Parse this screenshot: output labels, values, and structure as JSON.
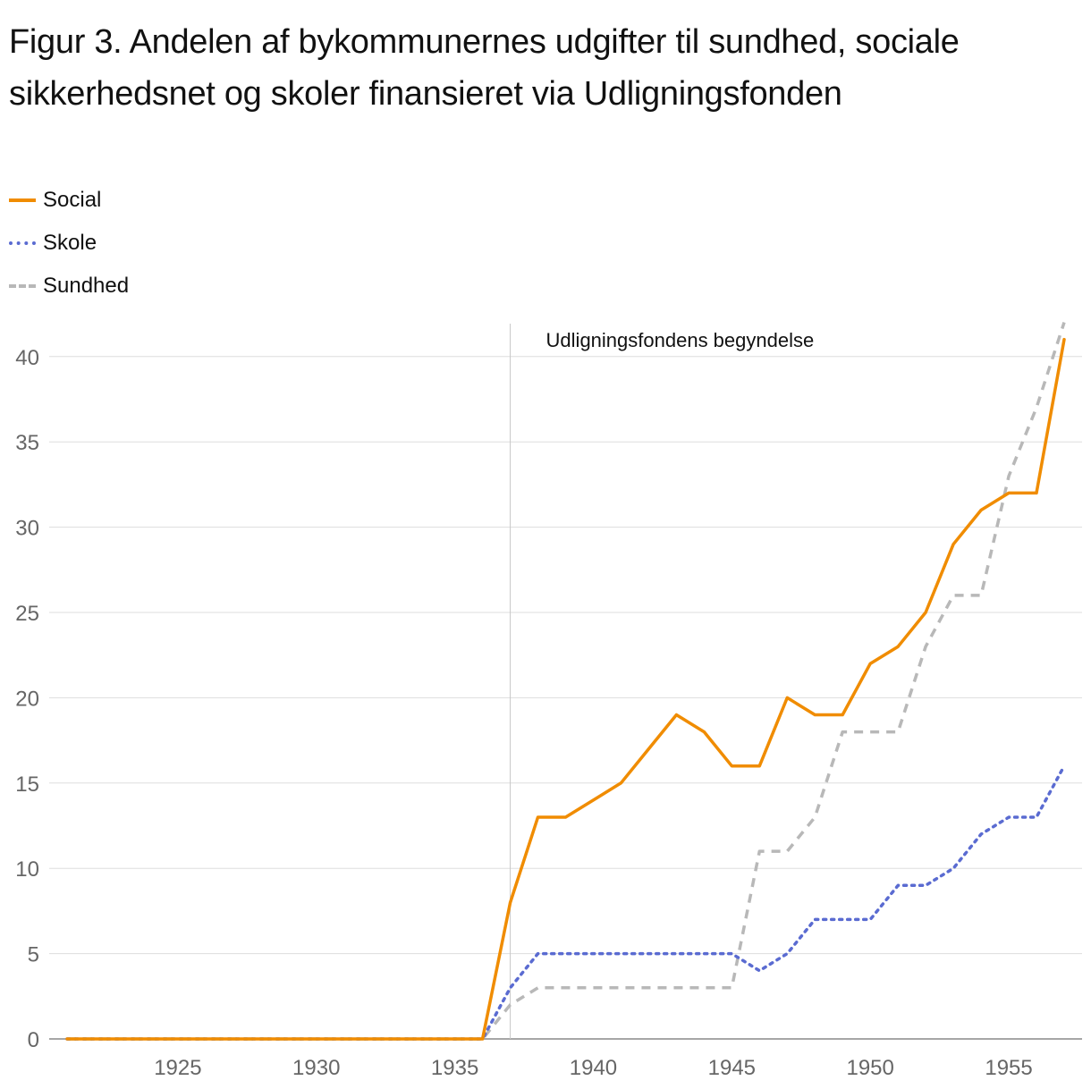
{
  "title": "Figur 3. Andelen af bykommunernes udgifter til sundhed, sociale sikkerhedsnet og skoler finansieret via Udligningsfonden",
  "colors": {
    "social": "#f08c00",
    "skole": "#5a6bd1",
    "sundhed": "#b8b8b8",
    "grid": "#dddddd",
    "axis": "#666666",
    "annotation_line": "#c8c8c8"
  },
  "chart_data": {
    "type": "line",
    "title": "Figur 3. Andelen af bykommunernes udgifter til sundhed, sociale sikkerhedsnet og skoler finansieret via Udligningsfonden",
    "xlabel": "",
    "ylabel": "",
    "xlim": [
      1921,
      1957
    ],
    "ylim": [
      0,
      42
    ],
    "x_ticks": [
      1925,
      1930,
      1935,
      1940,
      1945,
      1950,
      1955
    ],
    "y_ticks": [
      0,
      5,
      10,
      15,
      20,
      25,
      30,
      35,
      40
    ],
    "grid": "horizontal",
    "legend_position": "top-left",
    "annotation": {
      "x": 1937,
      "text": "Udligningsfondens begyndelse"
    },
    "x": [
      1921,
      1922,
      1923,
      1924,
      1925,
      1926,
      1927,
      1928,
      1929,
      1930,
      1931,
      1932,
      1933,
      1934,
      1935,
      1936,
      1937,
      1938,
      1939,
      1940,
      1941,
      1942,
      1943,
      1944,
      1945,
      1946,
      1947,
      1948,
      1949,
      1950,
      1951,
      1952,
      1953,
      1954,
      1955,
      1956,
      1957
    ],
    "series": [
      {
        "name": "Social",
        "style": "solid",
        "values": [
          0,
          0,
          0,
          0,
          0,
          0,
          0,
          0,
          0,
          0,
          0,
          0,
          0,
          0,
          0,
          0,
          8,
          13,
          13,
          14,
          15,
          17,
          19,
          18,
          16,
          16,
          20,
          19,
          19,
          22,
          23,
          25,
          29,
          31,
          32,
          32,
          41
        ]
      },
      {
        "name": "Skole",
        "style": "dotted",
        "values": [
          0,
          0,
          0,
          0,
          0,
          0,
          0,
          0,
          0,
          0,
          0,
          0,
          0,
          0,
          0,
          0,
          3,
          5,
          5,
          5,
          5,
          5,
          5,
          5,
          5,
          4,
          5,
          7,
          7,
          7,
          9,
          9,
          10,
          12,
          13,
          13,
          16
        ]
      },
      {
        "name": "Sundhed",
        "style": "dashed",
        "values": [
          0,
          0,
          0,
          0,
          0,
          0,
          0,
          0,
          0,
          0,
          0,
          0,
          0,
          0,
          0,
          0,
          2,
          3,
          3,
          3,
          3,
          3,
          3,
          3,
          3,
          11,
          11,
          13,
          18,
          18,
          18,
          23,
          26,
          26,
          33,
          37,
          42
        ]
      }
    ]
  }
}
